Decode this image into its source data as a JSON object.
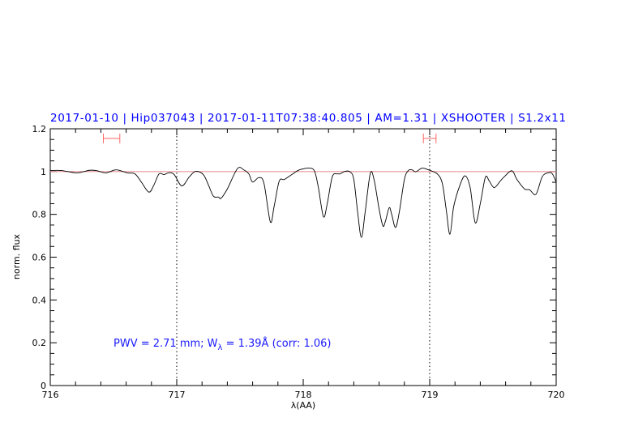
{
  "chart_data": {
    "type": "line",
    "title": "2017-01-10 | Hip037043 | 2017-01-11T07:38:40.805 | AM=1.31 | XSHOOTER | S1.2x11",
    "xlabel": "λ(AA)",
    "ylabel": "norm. flux",
    "xlim": [
      716,
      720
    ],
    "ylim": [
      0,
      1.2
    ],
    "x_ticks": [
      "716",
      "717",
      "718",
      "719",
      "720"
    ],
    "y_ticks": [
      "0",
      "0.2",
      "0.4",
      "0.6",
      "0.8",
      "1",
      "1.2"
    ],
    "grid": false,
    "reference_line_y": 1,
    "dotted_vertical_lines_x": [
      717,
      719
    ],
    "annotation": {
      "pwv": "PWV = 2.71 mm; W",
      "sub": "λ",
      "rest": " = 1.39Å (corr: 1.06)"
    },
    "error_bars": [
      {
        "x_from": 716.42,
        "x_to": 716.55,
        "y": 1.155
      },
      {
        "x_from": 718.95,
        "x_to": 719.05,
        "y": 1.155
      }
    ],
    "colors": {
      "title": "#0000ff",
      "annotation": "#1a1aff",
      "spectrum": "#000000",
      "reference_line": "#e88888",
      "error_bars": "#ff6666"
    },
    "series": [
      {
        "x": [
          716.0,
          716.09,
          716.21,
          716.31,
          716.37,
          716.44,
          716.52,
          716.61,
          716.67,
          716.72,
          716.78,
          716.82,
          716.86,
          716.9,
          716.94,
          716.98,
          717.04,
          717.1,
          717.15,
          717.21,
          717.25,
          717.29,
          717.33,
          717.35,
          717.4,
          717.48,
          717.53,
          717.57,
          717.6,
          717.65,
          717.69,
          717.74,
          717.77,
          717.81,
          717.85,
          717.91,
          717.97,
          718.05,
          718.09,
          718.12,
          718.16,
          718.19,
          718.23,
          718.27,
          718.29,
          718.33,
          718.37,
          718.4,
          718.43,
          718.46,
          718.49,
          718.53,
          718.56,
          718.6,
          718.63,
          718.65,
          718.68,
          718.7,
          718.73,
          718.76,
          718.8,
          718.83,
          718.86,
          718.89,
          718.94,
          718.99,
          719.06,
          719.1,
          719.13,
          719.16,
          719.19,
          719.24,
          719.28,
          719.32,
          719.36,
          719.4,
          719.44,
          719.47,
          719.51,
          719.56,
          719.59,
          719.65,
          719.69,
          719.75,
          719.79,
          719.84,
          719.89,
          719.94,
          719.97,
          720.0
        ],
        "y": [
          1.005,
          1.005,
          0.994,
          1.006,
          1.004,
          0.994,
          1.008,
          0.994,
          0.989,
          0.951,
          0.904,
          0.938,
          0.989,
          0.986,
          0.995,
          0.986,
          0.933,
          0.976,
          1.001,
          0.986,
          0.938,
          0.885,
          0.881,
          0.875,
          0.919,
          1.014,
          1.008,
          0.989,
          0.951,
          0.972,
          0.944,
          0.765,
          0.837,
          0.955,
          0.963,
          0.986,
          1.008,
          1.016,
          1.001,
          0.925,
          0.789,
          0.85,
          0.976,
          0.989,
          0.989,
          1.001,
          0.999,
          0.963,
          0.812,
          0.692,
          0.812,
          0.991,
          0.963,
          0.825,
          0.746,
          0.768,
          0.831,
          0.799,
          0.739,
          0.812,
          0.963,
          1.004,
          1.008,
          0.999,
          1.016,
          1.008,
          0.989,
          0.944,
          0.825,
          0.707,
          0.837,
          0.938,
          0.98,
          0.925,
          0.761,
          0.85,
          0.973,
          0.957,
          0.925,
          0.957,
          0.976,
          1.004,
          0.963,
          0.919,
          0.915,
          0.894,
          0.976,
          0.995,
          0.989,
          0.951
        ]
      }
    ]
  }
}
